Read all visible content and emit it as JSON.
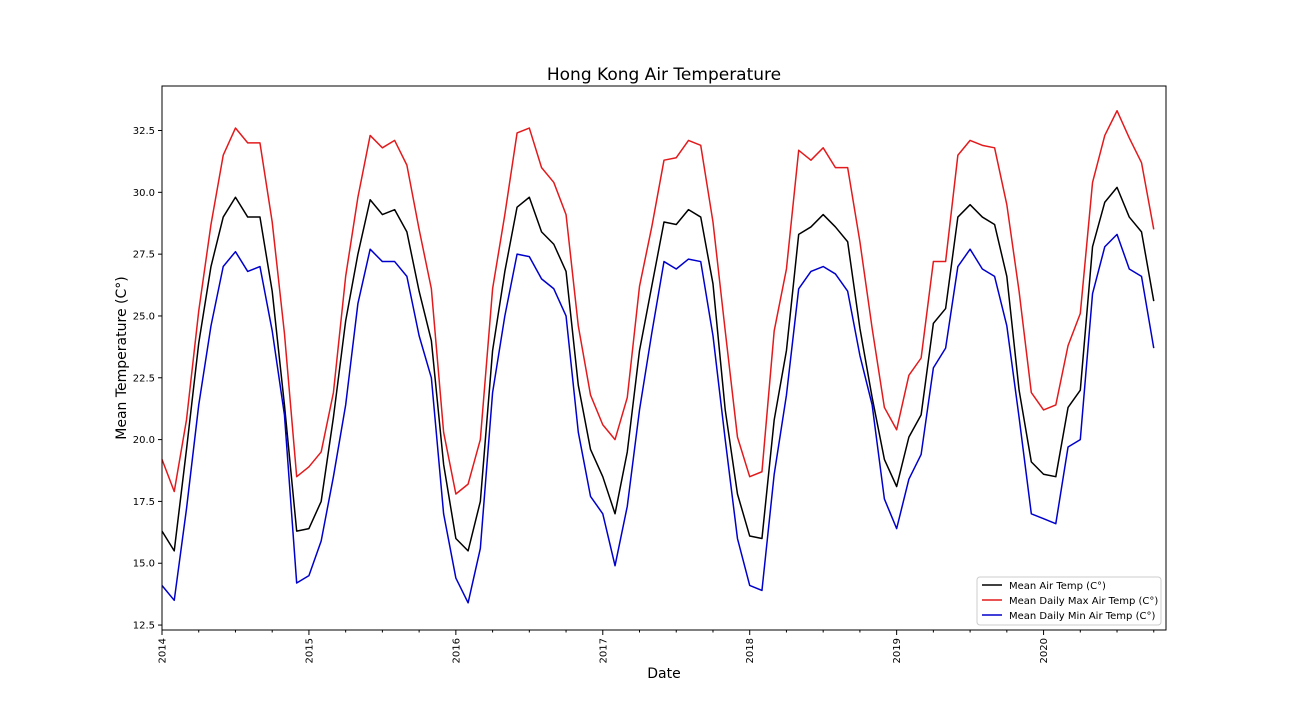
{
  "chart_data": {
    "type": "line",
    "title": "Hong Kong Air Temperature",
    "xlabel": "Date",
    "ylabel": "Mean Temperature (C°)",
    "x_start": {
      "year": 2014,
      "month": 1
    },
    "xlim_years": [
      2014.0,
      2020.8333
    ],
    "x_ticks": [
      "2014",
      "2015",
      "2016",
      "2017",
      "2018",
      "2019",
      "2020"
    ],
    "ylim": [
      12.3,
      34.3
    ],
    "y_ticks": [
      "12.5",
      "15.0",
      "17.5",
      "20.0",
      "22.5",
      "25.0",
      "27.5",
      "30.0",
      "32.5"
    ],
    "legend_position": "lower-right",
    "series": [
      {
        "name": "Mean Air Temp (C°)",
        "color": "#000000",
        "values": [
          16.3,
          15.5,
          19.6,
          23.9,
          27.0,
          29.0,
          29.8,
          29.0,
          29.0,
          26.0,
          21.4,
          16.3,
          16.4,
          17.5,
          20.9,
          24.8,
          27.5,
          29.7,
          29.1,
          29.3,
          28.4,
          26.0,
          24.0,
          19.0,
          16.0,
          15.5,
          17.5,
          23.6,
          26.8,
          29.4,
          29.8,
          28.4,
          27.9,
          26.8,
          22.2,
          19.6,
          18.5,
          17.0,
          19.5,
          23.6,
          26.2,
          28.8,
          28.7,
          29.3,
          29.0,
          26.3,
          21.2,
          17.8,
          16.1,
          16.0,
          20.8,
          23.6,
          28.3,
          28.6,
          29.1,
          28.6,
          28.0,
          24.5,
          21.7,
          19.2,
          18.1,
          20.1,
          21.0,
          24.7,
          25.3,
          29.0,
          29.5,
          29.0,
          28.7,
          26.6,
          22.0,
          19.1,
          18.6,
          18.5,
          21.3,
          22.0,
          27.8,
          29.6,
          30.2,
          29.0,
          28.4,
          25.6
        ]
      },
      {
        "name": "Mean Daily Max Air Temp (C°)",
        "color": "#e31a1c",
        "values": [
          19.2,
          17.9,
          20.8,
          25.2,
          28.7,
          31.5,
          32.6,
          32.0,
          32.0,
          28.8,
          24.3,
          18.5,
          18.9,
          19.5,
          21.9,
          26.6,
          29.8,
          32.3,
          31.8,
          32.1,
          31.1,
          28.5,
          26.1,
          20.3,
          17.8,
          18.2,
          20.0,
          26.1,
          29.1,
          32.4,
          32.6,
          31.0,
          30.4,
          29.1,
          24.6,
          21.8,
          20.6,
          20.0,
          21.7,
          26.2,
          28.6,
          31.3,
          31.4,
          32.1,
          31.9,
          28.8,
          24.4,
          20.1,
          18.5,
          18.7,
          24.4,
          26.9,
          31.7,
          31.3,
          31.8,
          31.0,
          31.0,
          28.0,
          24.5,
          21.3,
          20.4,
          22.6,
          23.3,
          27.2,
          27.2,
          31.5,
          32.1,
          31.9,
          31.8,
          29.5,
          26.0,
          21.9,
          21.2,
          21.4,
          23.8,
          25.1,
          30.4,
          32.3,
          33.3,
          32.2,
          31.2,
          28.5
        ]
      },
      {
        "name": "Mean Daily Min Air Temp (C°)",
        "color": "#0000cc",
        "values": [
          14.1,
          13.5,
          17.2,
          21.4,
          24.6,
          27.0,
          27.6,
          26.8,
          27.0,
          24.4,
          21.0,
          14.2,
          14.5,
          15.9,
          18.5,
          21.4,
          25.5,
          27.7,
          27.2,
          27.2,
          26.6,
          24.2,
          22.5,
          17.0,
          14.4,
          13.4,
          15.6,
          21.9,
          25.0,
          27.5,
          27.4,
          26.5,
          26.1,
          25.0,
          20.3,
          17.7,
          17.0,
          14.9,
          17.3,
          21.2,
          24.3,
          27.2,
          26.9,
          27.3,
          27.2,
          24.2,
          20.0,
          16.0,
          14.1,
          13.9,
          18.6,
          21.8,
          26.1,
          26.8,
          27.0,
          26.7,
          26.0,
          23.4,
          21.4,
          17.6,
          16.4,
          18.4,
          19.4,
          22.9,
          23.7,
          27.0,
          27.7,
          26.9,
          26.6,
          24.6,
          20.9,
          17.0,
          16.8,
          16.6,
          19.7,
          20.0,
          25.9,
          27.8,
          28.3,
          26.9,
          26.6,
          23.7
        ]
      }
    ]
  }
}
